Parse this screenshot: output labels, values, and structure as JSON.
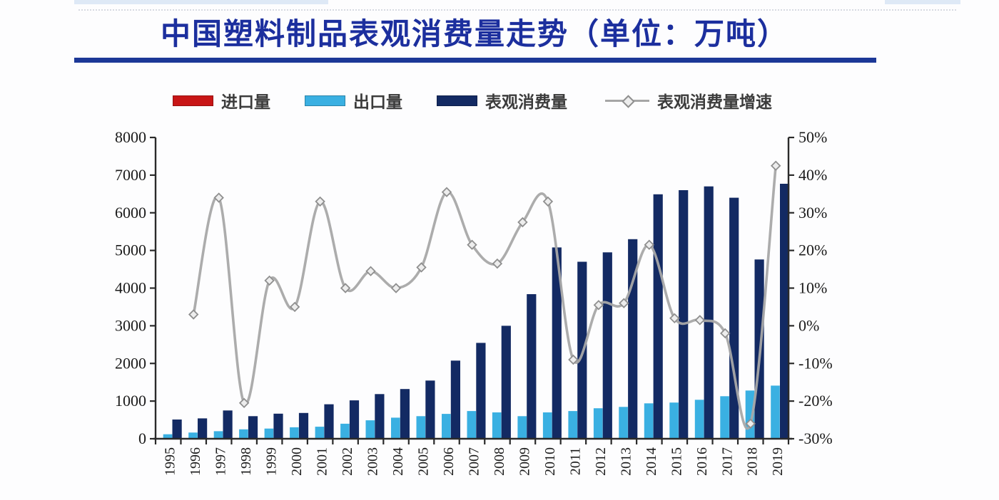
{
  "title_block": {
    "title": "中国塑料制品表观消费量走势（单位：万吨）"
  },
  "chart_data": {
    "type": "combo-bar-line",
    "title": "中国塑料制品表观消费量走势（单位：万吨）",
    "unit": "万吨",
    "grid": false,
    "legend_position": "top",
    "categories": [
      "1995",
      "1996",
      "1997",
      "1998",
      "1999",
      "2000",
      "2001",
      "2002",
      "2003",
      "2004",
      "2005",
      "2006",
      "2007",
      "2008",
      "2009",
      "2010",
      "2011",
      "2012",
      "2013",
      "2014",
      "2015",
      "2016",
      "2017",
      "2018",
      "2019"
    ],
    "series": [
      {
        "name": "进口量",
        "type": "bar",
        "axis": "left",
        "color": "#c81616",
        "values": [
          0,
          0,
          0,
          0,
          0,
          0,
          0,
          0,
          0,
          0,
          0,
          0,
          0,
          0,
          0,
          0,
          0,
          0,
          0,
          0,
          0,
          0,
          0,
          0,
          0
        ]
      },
      {
        "name": "出口量",
        "type": "bar",
        "axis": "left",
        "color": "#3ab0e2",
        "values": [
          120,
          165,
          200,
          250,
          270,
          305,
          320,
          400,
          490,
          560,
          600,
          660,
          735,
          700,
          600,
          700,
          735,
          810,
          845,
          940,
          960,
          1035,
          1130,
          1280,
          1410
        ]
      },
      {
        "name": "表观消费量",
        "type": "bar",
        "axis": "left",
        "color": "#132a63",
        "values": [
          510,
          540,
          750,
          600,
          665,
          685,
          915,
          1020,
          1185,
          1320,
          1545,
          2075,
          2545,
          3000,
          3840,
          5080,
          4700,
          4950,
          5300,
          6490,
          6600,
          6700,
          6400,
          4760,
          6770
        ]
      },
      {
        "name": "表观消费量增速",
        "type": "line",
        "axis": "right",
        "unit": "percent",
        "color": "#a8a8a8",
        "marker": "diamond",
        "values": [
          null,
          3,
          34,
          -20.5,
          12,
          5,
          33,
          10,
          14.5,
          10,
          15.5,
          35.5,
          21.5,
          16.5,
          27.5,
          33,
          -9,
          5.5,
          6,
          21.5,
          2,
          1.5,
          -2,
          -26,
          42.5
        ]
      }
    ],
    "left_axis": {
      "min": 0,
      "max": 8000,
      "tick_step": 1000,
      "tick_labels": [
        "0",
        "1000",
        "2000",
        "3000",
        "4000",
        "5000",
        "6000",
        "7000",
        "8000"
      ]
    },
    "right_axis": {
      "min": -30,
      "max": 50,
      "tick_step": 10,
      "tick_labels": [
        "-30%",
        "-20%",
        "-10%",
        "0%",
        "10%",
        "20%",
        "30%",
        "40%",
        "50%"
      ]
    }
  }
}
